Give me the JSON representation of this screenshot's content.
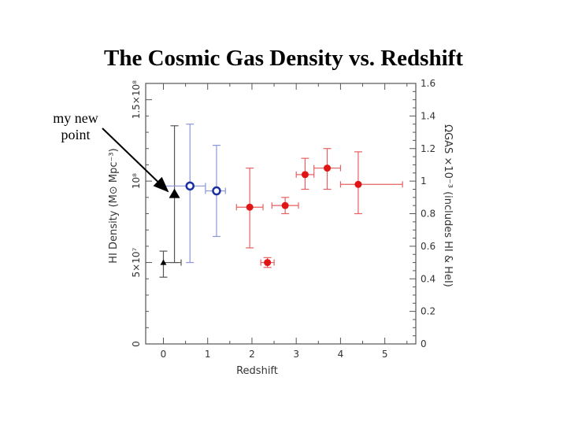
{
  "chart_data": {
    "type": "scatter",
    "title": "The Cosmic Gas Density vs. Redshift",
    "xlabel": "Redshift",
    "ylabel": "HI Density (M⊙ Mpc⁻³)",
    "y2label": "ΩGAS ×10⁻³ (includes HI & HeI)",
    "xlim": [
      -0.4,
      5.7
    ],
    "ylim": [
      0,
      1.6
    ],
    "x_ticks": [
      "0",
      "1",
      "2",
      "3",
      "4",
      "5"
    ],
    "y_ticks_left": [
      "0",
      "5×10⁷",
      "10⁸",
      "1.5×10⁸"
    ],
    "y_ticks_right": [
      "0",
      "0.2",
      "0.4",
      "0.6",
      "0.8",
      "1",
      "1.2",
      "1.4",
      "1.6"
    ],
    "annotation": "my new point",
    "grid": false,
    "series": [
      {
        "marker": "filled-triangle",
        "color": "#000000",
        "points": [
          {
            "x": 0.0,
            "y": 0.5,
            "xerr": [
              0.0,
              0.4
            ],
            "yerr": [
              0.41,
              0.57
            ]
          }
        ]
      },
      {
        "marker": "filled-triangle-large",
        "color": "#000000",
        "points": [
          {
            "x": 0.25,
            "y": 0.92,
            "yerr": [
              0.5,
              1.34
            ]
          }
        ]
      },
      {
        "marker": "open-circle",
        "color": "#1a2fa0",
        "points": [
          {
            "x": 0.6,
            "y": 0.97,
            "xerr": [
              0.0,
              0.95
            ],
            "yerr": [
              0.5,
              1.35
            ]
          },
          {
            "x": 1.2,
            "y": 0.94,
            "xerr": [
              0.95,
              1.4
            ],
            "yerr": [
              0.66,
              1.22
            ]
          }
        ]
      },
      {
        "marker": "filled-circle",
        "color": "#e01515",
        "points": [
          {
            "x": 1.95,
            "y": 0.84,
            "xerr": [
              1.65,
              2.25
            ],
            "yerr": [
              0.59,
              1.08
            ]
          },
          {
            "x": 2.35,
            "y": 0.5,
            "xerr": [
              2.2,
              2.5
            ],
            "yerr": [
              0.47,
              0.53
            ]
          },
          {
            "x": 2.75,
            "y": 0.85,
            "xerr": [
              2.45,
              3.05
            ],
            "yerr": [
              0.8,
              0.9
            ]
          },
          {
            "x": 3.2,
            "y": 1.04,
            "xerr": [
              3.0,
              3.4
            ],
            "yerr": [
              0.95,
              1.14
            ]
          },
          {
            "x": 3.7,
            "y": 1.08,
            "xerr": [
              3.4,
              4.0
            ],
            "yerr": [
              0.95,
              1.2
            ]
          },
          {
            "x": 4.4,
            "y": 0.98,
            "xerr": [
              4.0,
              5.4
            ],
            "yerr": [
              0.8,
              1.18
            ]
          }
        ]
      }
    ]
  }
}
